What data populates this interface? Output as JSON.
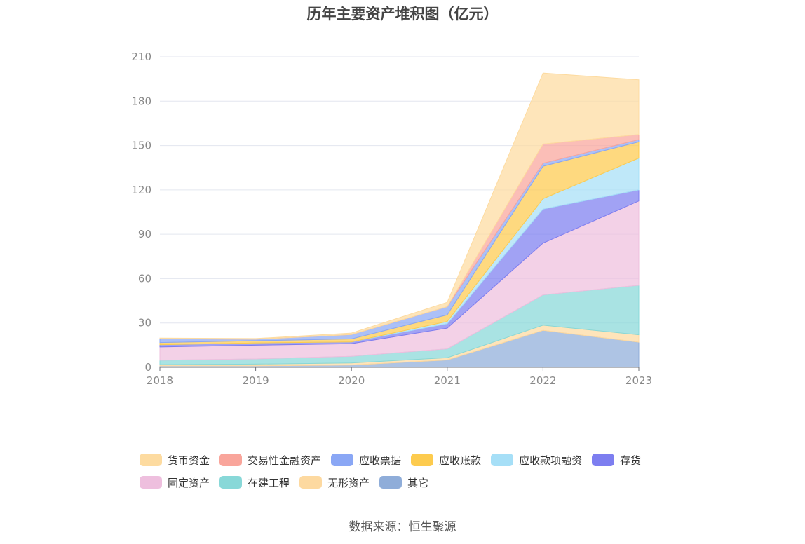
{
  "chart_data": {
    "type": "area",
    "stacked": true,
    "title": "历年主要资产堆积图（亿元）",
    "xlabel": "",
    "ylabel": "",
    "x": [
      "2018",
      "2019",
      "2020",
      "2021",
      "2022",
      "2023"
    ],
    "ylim": [
      0,
      210
    ],
    "yticks": [
      0,
      30,
      60,
      90,
      120,
      150,
      180,
      210
    ],
    "grid": true,
    "legend_position": "bottom",
    "series": [
      {
        "name": "其它",
        "color": "#8fadd9",
        "values": [
          1,
          1,
          1.5,
          5,
          25,
          17
        ]
      },
      {
        "name": "无形资产",
        "color": "#fdd9a0",
        "values": [
          0.8,
          1.2,
          1.5,
          1.5,
          3.5,
          5
        ]
      },
      {
        "name": "在建工程",
        "color": "#88d8d8",
        "values": [
          3,
          3.5,
          4.5,
          6,
          20.5,
          33.5
        ]
      },
      {
        "name": "固定资产",
        "color": "#eebfde",
        "values": [
          9,
          9.3,
          8.5,
          14,
          35,
          57
        ]
      },
      {
        "name": "存货",
        "color": "#7d7ef0",
        "values": [
          1.5,
          1.5,
          1.2,
          3,
          23,
          7.5
        ]
      },
      {
        "name": "应收款项融资",
        "color": "#a6dff7",
        "values": [
          0,
          0,
          0,
          1.5,
          7,
          21.5
        ]
      },
      {
        "name": "应收账款",
        "color": "#fdcb4e",
        "values": [
          1.5,
          1.5,
          2,
          4.5,
          22,
          11
        ]
      },
      {
        "name": "应收票据",
        "color": "#8aa7f5",
        "values": [
          2.5,
          1,
          3,
          5.5,
          2,
          1.5
        ]
      },
      {
        "name": "交易性金融资产",
        "color": "#f9a59b",
        "values": [
          0,
          0,
          0,
          0,
          13,
          3.5
        ]
      },
      {
        "name": "货币资金",
        "color": "#fddba0",
        "values": [
          0.5,
          0.5,
          1,
          3,
          48,
          37
        ]
      }
    ],
    "legend_order": [
      "货币资金",
      "交易性金融资产",
      "应收票据",
      "应收账款",
      "应收款项融资",
      "存货",
      "固定资产",
      "在建工程",
      "无形资产",
      "其它"
    ]
  },
  "footer": {
    "source": "数据来源：恒生聚源"
  }
}
